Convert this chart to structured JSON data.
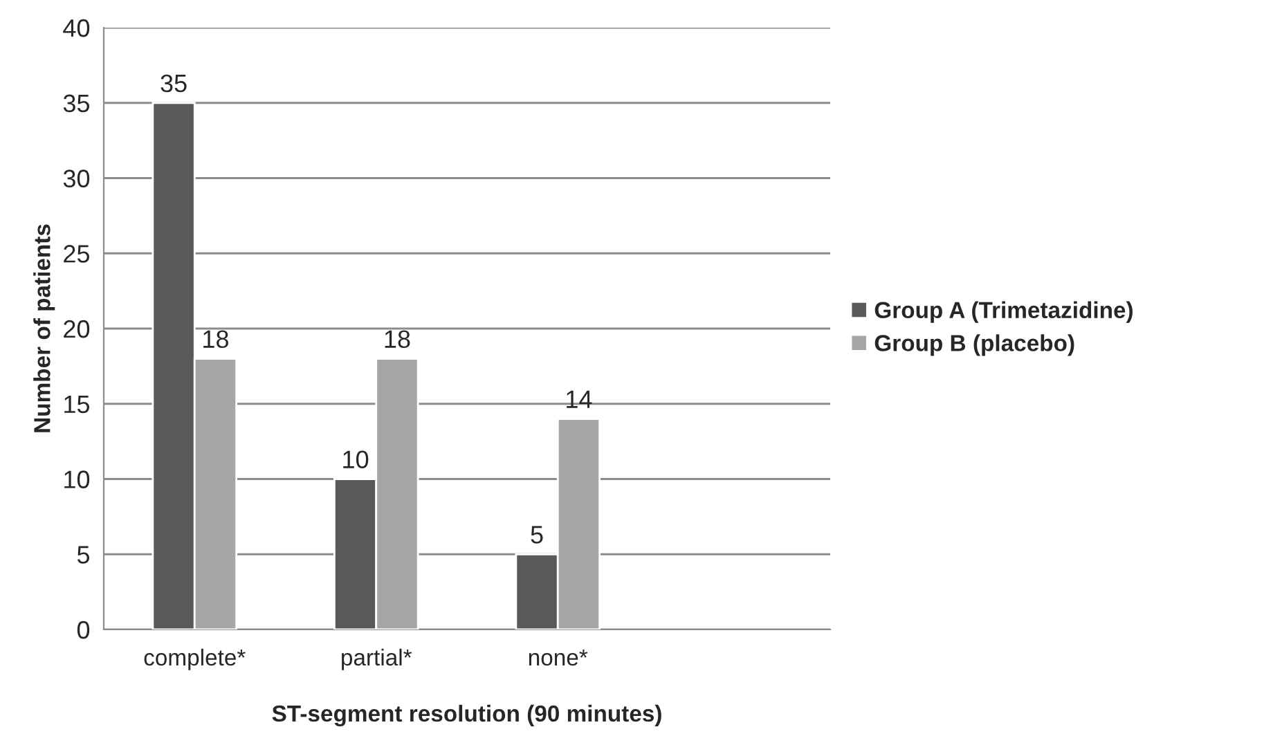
{
  "chart_data": {
    "type": "bar",
    "xlabel": "ST-segment resolution (90 minutes)",
    "ylabel": "Number of patients",
    "categories": [
      "complete*",
      "partial*",
      "none*",
      null
    ],
    "series": [
      {
        "name": "Group A (Trimetazidine)",
        "color": "#595959",
        "values": [
          35,
          10,
          5,
          null
        ]
      },
      {
        "name": "Group B (placebo)",
        "color": "#a6a6a6",
        "values": [
          18,
          18,
          14,
          null
        ]
      }
    ],
    "ylim": [
      0,
      40
    ],
    "yticks": [
      0,
      5,
      10,
      15,
      20,
      25,
      30,
      35,
      40
    ],
    "grid": "y",
    "legend": "right",
    "data_labels": true
  }
}
